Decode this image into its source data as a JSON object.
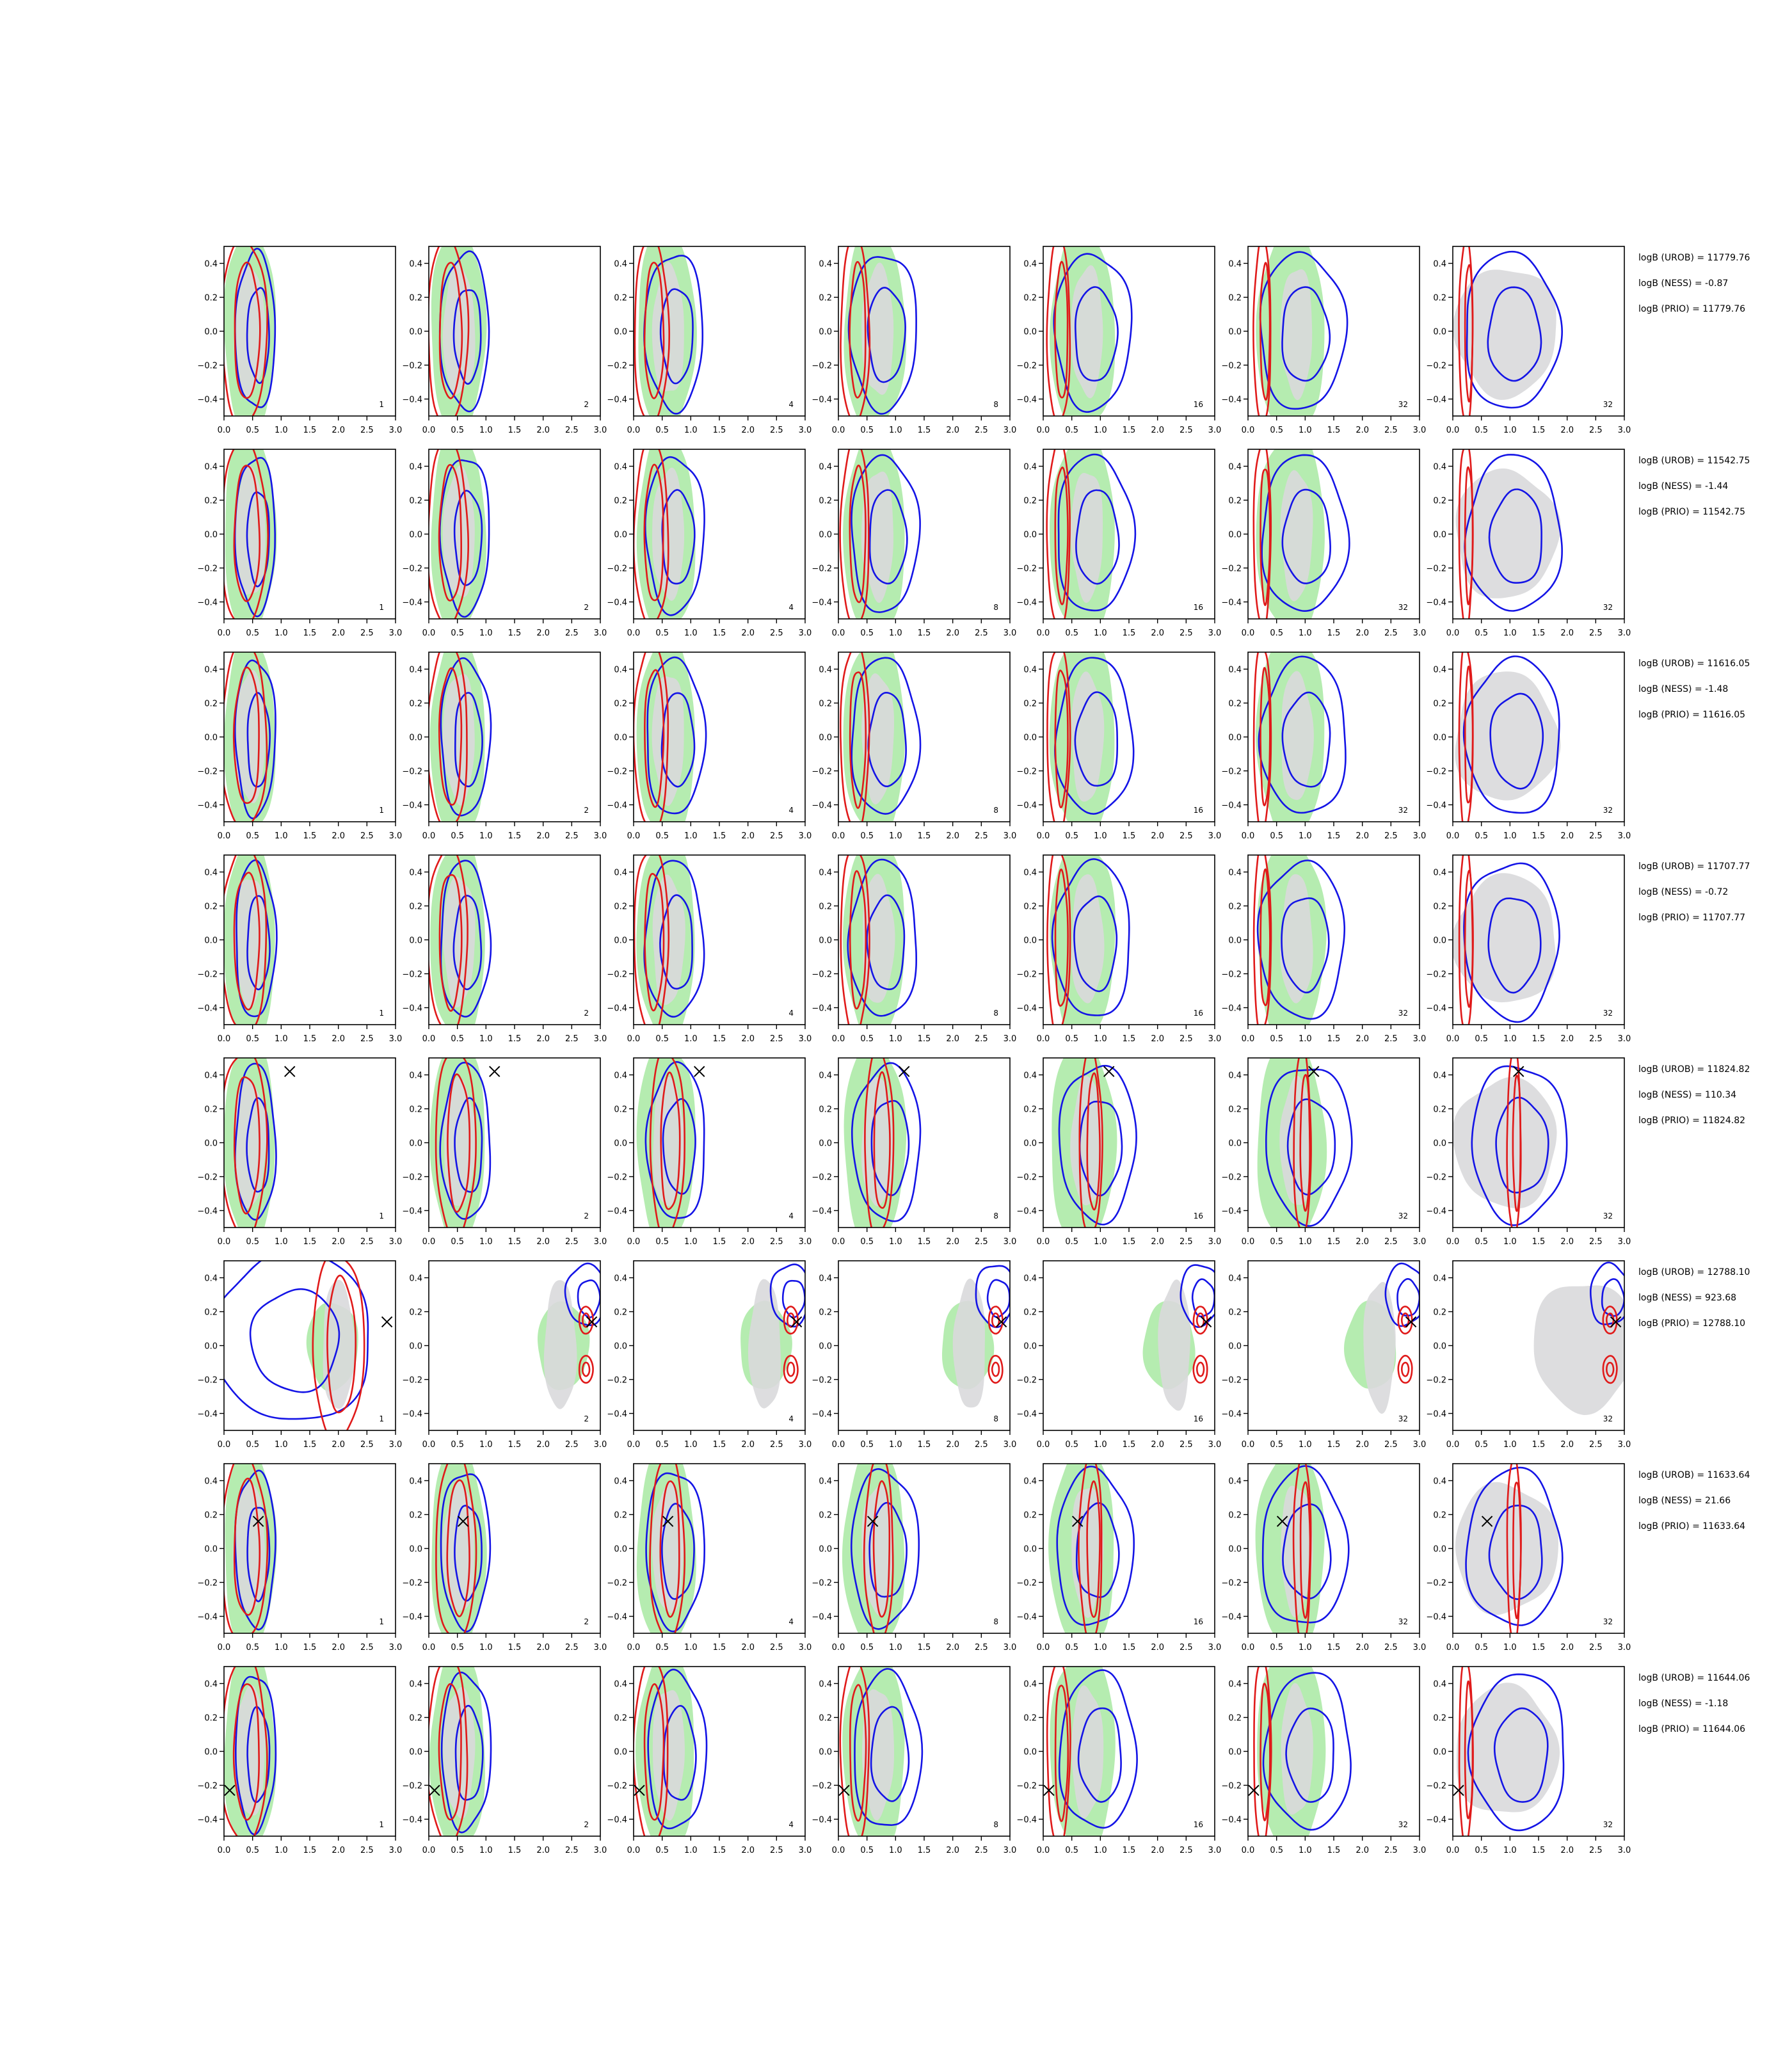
{
  "chart_data": {
    "type": "contour",
    "layout": {
      "rows": 8,
      "cols": 7
    },
    "xlim": [
      0.0,
      3.0
    ],
    "ylim": [
      -0.5,
      0.5
    ],
    "xticks": [
      "0.0",
      "0.5",
      "1.0",
      "1.5",
      "2.0",
      "2.5",
      "3.0"
    ],
    "yticks": [
      "0.4",
      "0.2",
      "0.0",
      "−0.2",
      "−0.4"
    ],
    "ytick_values": [
      0.4,
      0.2,
      0.0,
      -0.2,
      -0.4
    ],
    "xtick_values": [
      0.0,
      0.5,
      1.0,
      1.5,
      2.0,
      2.5,
      3.0
    ],
    "panel_labels": [
      "1",
      "2",
      "4",
      "8",
      "16",
      "32",
      "32"
    ],
    "colors": {
      "red": "#e01a1a",
      "blue": "#1414e6",
      "green_fill": "#b5ecb0",
      "grey_fill": "#d9d9dc",
      "marker": "#000000"
    },
    "rows": [
      {
        "annotations": [
          "logB (UROB) = 11779.76",
          "logB (NESS) = -0.87",
          "logB (PRIO) = 11779.76"
        ],
        "marker": null,
        "spread": 0.55
      },
      {
        "annotations": [
          "logB (UROB) = 11542.75",
          "logB (NESS) = -1.44",
          "logB (PRIO) = 11542.75"
        ],
        "marker": null,
        "spread": 0.6
      },
      {
        "annotations": [
          "logB (UROB) = 11616.05",
          "logB (NESS) = -1.48",
          "logB (PRIO) = 11616.05"
        ],
        "marker": null,
        "spread": 0.6
      },
      {
        "annotations": [
          "logB (UROB) = 11707.77",
          "logB (NESS) = -0.72",
          "logB (PRIO) = 11707.77"
        ],
        "marker": null,
        "spread": 0.55
      },
      {
        "annotations": [
          "logB (UROB) = 11824.82",
          "logB (NESS) = 110.34",
          "logB (PRIO) = 11824.82"
        ],
        "marker": {
          "x": 1.15,
          "y": 0.42
        },
        "spread": 0.7
      },
      {
        "annotations": [
          "logB (UROB) = 12788.10",
          "logB (NESS) = 923.68",
          "logB (PRIO) = 12788.10"
        ],
        "marker": {
          "x": 2.85,
          "y": 0.14
        },
        "spread": 0.9
      },
      {
        "annotations": [
          "logB (UROB) = 11633.64",
          "logB (NESS) = 21.66",
          "logB (PRIO) = 11633.64"
        ],
        "marker": {
          "x": 0.6,
          "y": 0.16
        },
        "spread": 0.6
      },
      {
        "annotations": [
          "logB (UROB) = 11644.06",
          "logB (NESS) = -1.18",
          "logB (PRIO) = 11644.06"
        ],
        "marker": {
          "x": 0.1,
          "y": -0.23
        },
        "spread": 0.7
      }
    ]
  }
}
